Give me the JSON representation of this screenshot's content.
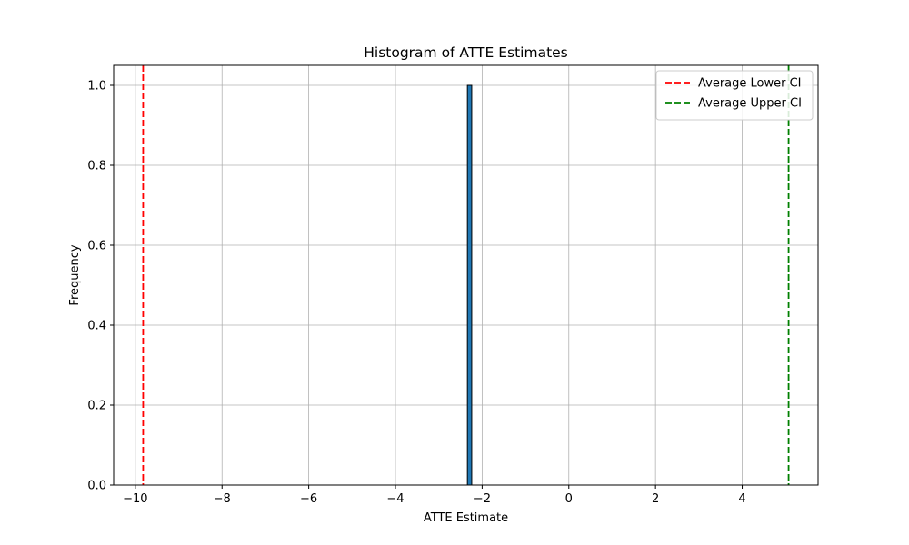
{
  "chart_data": {
    "type": "bar",
    "title": "Histogram of ATTE Estimates",
    "xlabel": "ATTE Estimate",
    "ylabel": "Frequency",
    "xlim": [
      -10.5,
      5.75
    ],
    "ylim": [
      0,
      1.05
    ],
    "xticks": [
      -10,
      -8,
      -6,
      -4,
      -2,
      0,
      2,
      4
    ],
    "xtick_labels": [
      "−10",
      "−8",
      "−6",
      "−4",
      "−2",
      "0",
      "2",
      "4"
    ],
    "yticks": [
      0.0,
      0.2,
      0.4,
      0.6,
      0.8,
      1.0
    ],
    "ytick_labels": [
      "0.0",
      "0.2",
      "0.4",
      "0.6",
      "0.8",
      "1.0"
    ],
    "grid": true,
    "legend_position": "top-right",
    "bins": [
      {
        "x0": -2.34,
        "x1": -2.24,
        "count": 1
      }
    ],
    "bar_color": "#1f77b4",
    "bar_edge_color": "#000000",
    "reference_lines": [
      {
        "name": "Average Lower CI",
        "x": -9.82,
        "color": "#ff0000",
        "style": "dashed"
      },
      {
        "name": "Average Upper CI",
        "x": 5.07,
        "color": "#008000",
        "style": "dashed"
      }
    ]
  }
}
